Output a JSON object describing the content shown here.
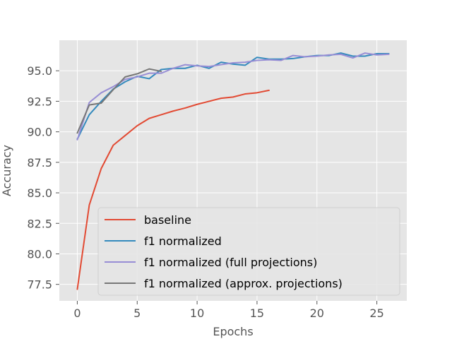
{
  "chart_data": {
    "type": "line",
    "title": "",
    "xlabel": "Epochs",
    "ylabel": "Accuracy",
    "xlim": [
      -1.5,
      27.5
    ],
    "ylim": [
      76.15,
      97.5
    ],
    "xticks": [
      0,
      5,
      10,
      15,
      20,
      25
    ],
    "xtick_labels": [
      "0",
      "5",
      "10",
      "15",
      "20",
      "25"
    ],
    "yticks": [
      77.5,
      80.0,
      82.5,
      85.0,
      87.5,
      90.0,
      92.5,
      95.0
    ],
    "ytick_labels": [
      "77.5",
      "80.0",
      "82.5",
      "85.0",
      "87.5",
      "90.0",
      "92.5",
      "95.0"
    ],
    "grid": true,
    "legend_position": "lower-right",
    "series": [
      {
        "name": "baseline",
        "color": "#e24a33",
        "x": [
          0,
          1,
          2,
          3,
          4,
          5,
          6,
          7,
          8,
          9,
          10,
          11,
          12,
          13,
          14,
          15,
          16
        ],
        "y": [
          77.1,
          84.0,
          87.0,
          88.9,
          89.7,
          90.5,
          91.1,
          91.4,
          91.7,
          91.95,
          92.25,
          92.5,
          92.75,
          92.85,
          93.1,
          93.2,
          93.4
        ]
      },
      {
        "name": "f1 normalized",
        "color": "#348abd",
        "x": [
          0,
          1,
          2,
          3,
          4,
          5,
          6,
          7,
          8,
          9,
          10,
          11,
          12,
          13,
          14,
          15,
          16,
          17,
          18,
          19,
          20,
          21,
          22,
          23,
          24,
          25,
          26
        ],
        "y": [
          89.4,
          91.4,
          92.5,
          93.5,
          94.1,
          94.55,
          94.35,
          95.1,
          95.2,
          95.2,
          95.45,
          95.2,
          95.7,
          95.55,
          95.45,
          96.1,
          95.95,
          95.95,
          96.0,
          96.15,
          96.25,
          96.25,
          96.45,
          96.2,
          96.2,
          96.4,
          96.4
        ]
      },
      {
        "name": "f1 normalized (full projections)",
        "color": "#988ed5",
        "x": [
          0,
          1,
          2,
          3,
          4,
          5,
          6,
          7,
          8,
          9,
          10,
          11,
          12,
          13,
          14,
          15,
          16,
          17,
          18,
          19,
          20,
          21,
          22,
          23,
          24,
          25,
          26
        ],
        "y": [
          89.35,
          92.4,
          93.2,
          93.7,
          94.3,
          94.5,
          94.8,
          94.8,
          95.2,
          95.5,
          95.4,
          95.35,
          95.5,
          95.65,
          95.7,
          95.85,
          95.9,
          95.85,
          96.25,
          96.15,
          96.2,
          96.3,
          96.35,
          96.05,
          96.45,
          96.3,
          96.35
        ]
      },
      {
        "name": "f1 normalized (approx. projections)",
        "color": "#777777",
        "x": [
          0,
          1,
          2,
          3,
          4,
          5,
          6,
          7
        ],
        "y": [
          89.9,
          92.2,
          92.35,
          93.45,
          94.5,
          94.75,
          95.15,
          94.95
        ]
      }
    ]
  }
}
